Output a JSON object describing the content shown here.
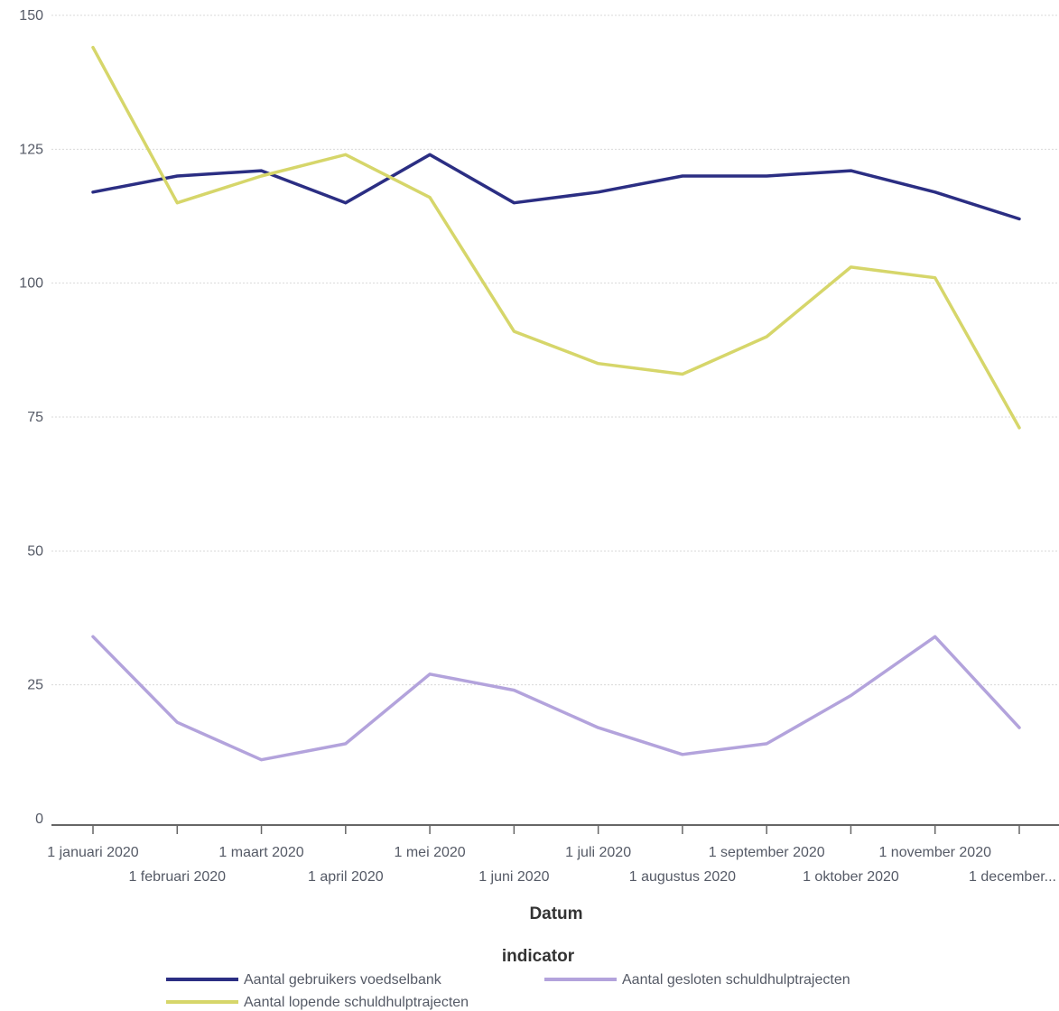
{
  "chart_data": {
    "type": "line",
    "xlabel": "Datum",
    "ylabel": "",
    "ylim": [
      0,
      150
    ],
    "y_ticks": [
      0,
      25,
      50,
      75,
      100,
      125,
      150
    ],
    "grid": true,
    "categories": [
      "1 januari 2020",
      "1 februari 2020",
      "1 maart 2020",
      "1 april 2020",
      "1 mei 2020",
      "1 juni 2020",
      "1 juli 2020",
      "1 augustus 2020",
      "1 september 2020",
      "1 oktober 2020",
      "1 november 2020",
      "1 december..."
    ],
    "legend": {
      "title": "indicator",
      "placement": "bottom"
    },
    "series": [
      {
        "name": "Aantal gebruikers voedselbank",
        "color": "#2b2e83",
        "values": [
          117,
          120,
          121,
          115,
          124,
          115,
          117,
          120,
          120,
          121,
          117,
          112
        ]
      },
      {
        "name": "Aantal gesloten schuldhulptrajecten",
        "color": "#b3a3dc",
        "values": [
          34,
          18,
          11,
          14,
          27,
          24,
          17,
          12,
          14,
          23,
          34,
          17
        ]
      },
      {
        "name": "Aantal lopende schuldhulptrajecten",
        "color": "#d6d66a",
        "values": [
          144,
          115,
          120,
          124,
          116,
          91,
          85,
          83,
          90,
          103,
          101,
          73
        ]
      }
    ]
  }
}
